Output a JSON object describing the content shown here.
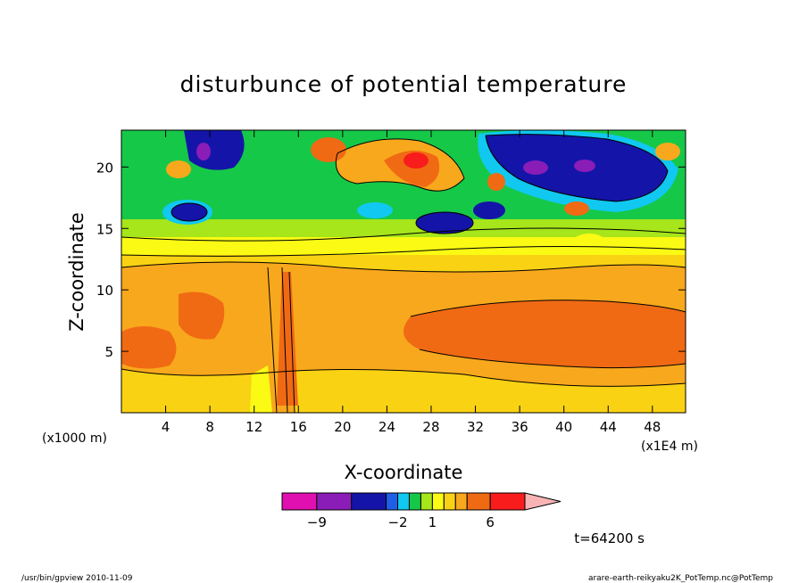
{
  "chart_data": {
    "type": "heatmap",
    "title": "disturbunce of potential temperature",
    "xlabel": "X-coordinate",
    "ylabel": "Z-coordinate",
    "x_unit_left": "(x1000 m)",
    "x_unit_right": "(x1E4 m)",
    "xlim": [
      0,
      51
    ],
    "ylim": [
      0,
      23
    ],
    "x_ticks": [
      4,
      8,
      12,
      16,
      20,
      24,
      28,
      32,
      36,
      40,
      44,
      48
    ],
    "x_tick_labels": [
      "4",
      "8",
      "12",
      "16",
      "20",
      "24",
      "28",
      "32",
      "36",
      "40",
      "44",
      "48"
    ],
    "y_ticks": [
      5,
      10,
      15,
      20
    ],
    "y_tick_labels": [
      "5",
      "10",
      "15",
      "20"
    ],
    "colorbar": {
      "levels": [
        -12,
        -9,
        -6,
        -3,
        -2,
        -1,
        0,
        1,
        2,
        3,
        4,
        6,
        9
      ],
      "colors": [
        "#e010b0",
        "#8a1cb8",
        "#1414a8",
        "#1f5ee6",
        "#10c8f0",
        "#16c848",
        "#a6e61a",
        "#fafa14",
        "#fad214",
        "#f8a81c",
        "#f06a14",
        "#f81c1c",
        "#fa7878",
        "#f8b4b4"
      ],
      "labels": [
        {
          "value": -9,
          "text": "−9"
        },
        {
          "value": -2,
          "text": "−2"
        },
        {
          "value": 1,
          "text": "1"
        },
        {
          "value": 6,
          "text": "6"
        }
      ]
    },
    "time_label": "t=64200 s",
    "grid": false,
    "legend": "bottom"
  },
  "footer": {
    "left": "/usr/bin/gpview   2010-11-09",
    "right": "arare-earth-reikyaku2K_PotTemp.nc@PotTemp"
  }
}
